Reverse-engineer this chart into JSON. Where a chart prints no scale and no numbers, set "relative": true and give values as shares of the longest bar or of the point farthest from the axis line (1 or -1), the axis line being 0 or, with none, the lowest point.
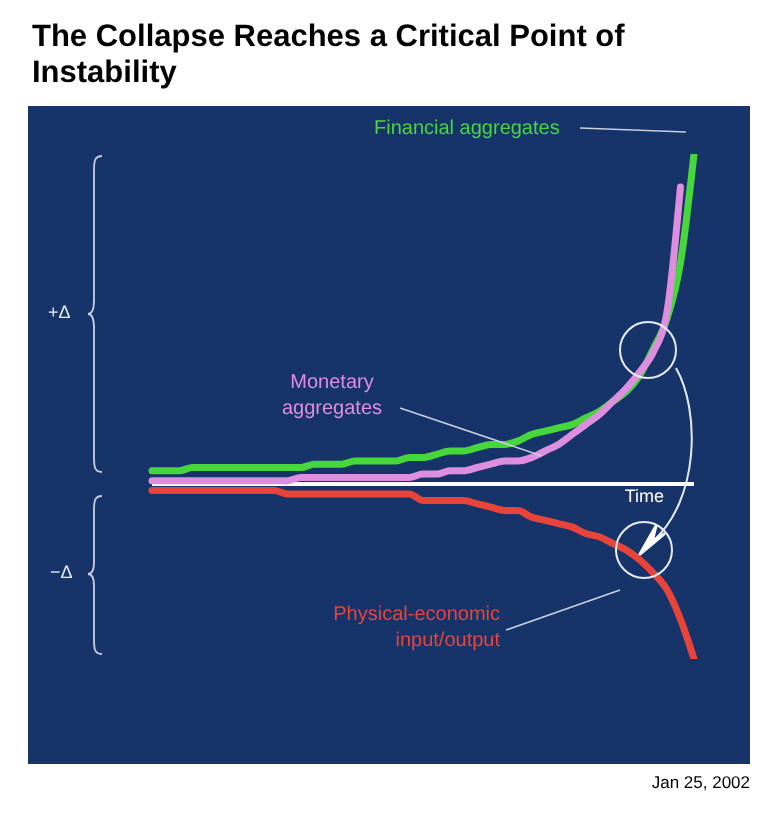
{
  "chart_data": {
    "type": "line",
    "title": "The Collapse Reaches a Critical Point of Instability",
    "xlabel": "Time",
    "relative": true,
    "legend": false,
    "grid": false,
    "marker": "none",
    "line_style": "solid",
    "tick_labels": false,
    "annotations": [
      "+Δ",
      "−Δ",
      "Jan 25, 2002"
    ],
    "categories": [
      null,
      null,
      null,
      null,
      null,
      null,
      null,
      null,
      null,
      null,
      null,
      null,
      null,
      null,
      null,
      null,
      null,
      null,
      null,
      null,
      null,
      null,
      null,
      null,
      null,
      null,
      null,
      null,
      null,
      null,
      null,
      null,
      null,
      null,
      null,
      null,
      null,
      null,
      null,
      null,
      null
    ],
    "series": [
      {
        "name": "Financial aggregates",
        "color": "#47d63c",
        "values": [
          0.04,
          0.04,
          0.04,
          0.05,
          0.05,
          0.05,
          0.05,
          0.05,
          0.05,
          0.05,
          0.05,
          0.05,
          0.06,
          0.06,
          0.06,
          0.07,
          0.07,
          0.07,
          0.07,
          0.08,
          0.08,
          0.09,
          0.1,
          0.1,
          0.11,
          0.12,
          0.12,
          0.13,
          0.15,
          0.16,
          0.17,
          0.18,
          0.2,
          0.22,
          0.25,
          0.28,
          0.33,
          0.41,
          0.5,
          0.67,
          1
        ]
      },
      {
        "name": "Monetary aggregates",
        "color": "#de8ede",
        "values": [
          0.01,
          0.01,
          0.01,
          0.01,
          0.01,
          0.01,
          0.01,
          0.01,
          0.01,
          0.01,
          0.01,
          0.02,
          0.02,
          0.02,
          0.02,
          0.02,
          0.02,
          0.02,
          0.02,
          0.02,
          0.03,
          0.03,
          0.04,
          0.04,
          0.05,
          0.06,
          0.07,
          0.07,
          0.08,
          0.1,
          0.12,
          0.15,
          0.18,
          0.21,
          0.25,
          0.29,
          0.34,
          0.4,
          0.52,
          0.9,
          null
        ]
      },
      {
        "name": "Physical-economic input/output",
        "color": "#e8443a",
        "values": [
          -0.02,
          -0.02,
          -0.02,
          -0.02,
          -0.02,
          -0.02,
          -0.02,
          -0.02,
          -0.02,
          -0.02,
          -0.03,
          -0.03,
          -0.03,
          -0.03,
          -0.03,
          -0.03,
          -0.03,
          -0.03,
          -0.03,
          -0.03,
          -0.05,
          -0.05,
          -0.05,
          -0.05,
          -0.06,
          -0.07,
          -0.08,
          -0.08,
          -0.1,
          -0.11,
          -0.12,
          -0.13,
          -0.15,
          -0.16,
          -0.18,
          -0.2,
          -0.23,
          -0.27,
          -0.32,
          -0.41,
          -0.53
        ]
      }
    ]
  }
}
